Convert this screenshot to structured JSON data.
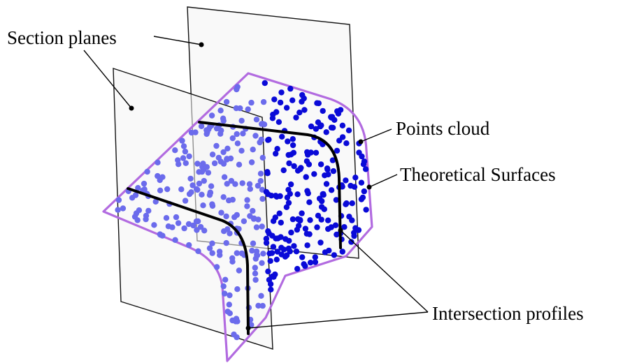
{
  "labels": {
    "section_planes": "Section planes",
    "points_cloud": "Points cloud",
    "theoretical_surfaces": "Theoretical Surfaces",
    "intersection_profiles": "Intersection profiles"
  },
  "colors": {
    "surface_outline": "#b26be0",
    "points_front": "#0a0ad8",
    "points_back": "#6b6bec",
    "profile": "#000000",
    "plane_fill": "#f4f4f4"
  }
}
